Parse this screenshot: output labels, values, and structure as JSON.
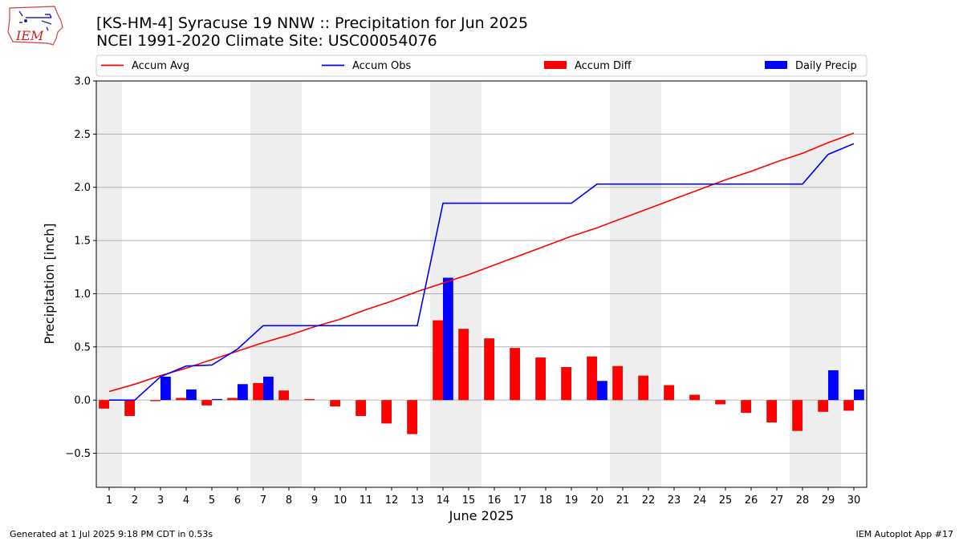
{
  "header": {
    "title_line1": "[KS-HM-4] Syracuse 19 NNW :: Precipitation for Jun 2025",
    "title_line2": "NCEI 1991-2020 Climate Site: USC00054076",
    "logo_text": "IEM"
  },
  "footer": {
    "generated": "Generated at 1 Jul 2025 9:18 PM CDT in 0.53s",
    "app": "IEM Autoplot App #17"
  },
  "colors": {
    "avg": "#ff0000",
    "obs": "#0000ff",
    "diff": "#ff0000",
    "daily": "#0000ff",
    "weekend_band": "#eeeeee",
    "grid": "#b0b0b0"
  },
  "chart_data": {
    "type": "bar",
    "xlabel": "June 2025",
    "ylabel": "Precipitation [inch]",
    "ylim": [
      -0.82,
      3.0
    ],
    "yticks": [
      -0.5,
      0.0,
      0.5,
      1.0,
      1.5,
      2.0,
      2.5,
      3.0
    ],
    "ytick_labels": [
      "−0.5",
      "0.0",
      "0.5",
      "1.0",
      "1.5",
      "2.0",
      "2.5",
      "3.0"
    ],
    "xticks": [
      "1",
      "2",
      "3",
      "4",
      "5",
      "6",
      "7",
      "8",
      "9",
      "10",
      "11",
      "12",
      "13",
      "14",
      "15",
      "16",
      "17",
      "18",
      "19",
      "20",
      "21",
      "22",
      "23",
      "24",
      "25",
      "26",
      "27",
      "28",
      "29",
      "30"
    ],
    "grid": "horizontal",
    "legend_placement": "top, above plot",
    "weekend_day_bands": [
      [
        1,
        1
      ],
      [
        7,
        8
      ],
      [
        14,
        15
      ],
      [
        21,
        22
      ],
      [
        28,
        29
      ]
    ],
    "series": [
      {
        "name": "Accum Avg",
        "kind": "line",
        "values": [
          0.08,
          0.15,
          0.23,
          0.3,
          0.38,
          0.46,
          0.54,
          0.61,
          0.69,
          0.76,
          0.85,
          0.93,
          1.02,
          1.1,
          1.18,
          1.27,
          1.36,
          1.45,
          1.54,
          1.62,
          1.71,
          1.8,
          1.89,
          1.98,
          2.07,
          2.15,
          2.24,
          2.32,
          2.42,
          2.51
        ]
      },
      {
        "name": "Accum Obs",
        "kind": "line",
        "values": [
          0.0,
          0.0,
          0.22,
          0.32,
          0.33,
          0.48,
          0.7,
          0.7,
          0.7,
          0.7,
          0.7,
          0.7,
          0.7,
          1.85,
          1.85,
          1.85,
          1.85,
          1.85,
          1.85,
          2.03,
          2.03,
          2.03,
          2.03,
          2.03,
          2.03,
          2.03,
          2.03,
          2.03,
          2.31,
          2.41
        ]
      },
      {
        "name": "Accum Diff",
        "kind": "bar",
        "values": [
          -0.08,
          -0.15,
          -0.01,
          0.02,
          -0.05,
          0.02,
          0.16,
          0.09,
          0.01,
          -0.06,
          -0.15,
          -0.22,
          -0.32,
          0.75,
          0.67,
          0.58,
          0.49,
          0.4,
          0.31,
          0.41,
          0.32,
          0.23,
          0.14,
          0.05,
          -0.04,
          -0.12,
          -0.21,
          -0.29,
          -0.11,
          -0.1
        ]
      },
      {
        "name": "Daily Precip",
        "kind": "bar",
        "values": [
          0.0,
          0.0,
          0.22,
          0.1,
          0.01,
          0.15,
          0.22,
          0.0,
          0.0,
          0.0,
          0.0,
          0.0,
          0.0,
          1.15,
          0.0,
          0.0,
          0.0,
          0.0,
          0.0,
          0.18,
          0.0,
          0.0,
          0.0,
          0.0,
          0.0,
          0.0,
          0.0,
          0.0,
          0.28,
          0.1
        ]
      }
    ]
  }
}
